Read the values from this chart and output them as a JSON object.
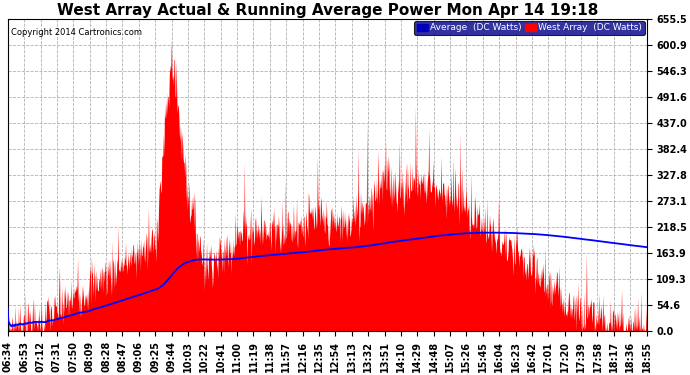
{
  "title": "West Array Actual & Running Average Power Mon Apr 14 19:18",
  "copyright": "Copyright 2014 Cartronics.com",
  "legend_avg": "Average  (DC Watts)",
  "legend_west": "West Array  (DC Watts)",
  "ylabel_values": [
    0.0,
    54.6,
    109.3,
    163.9,
    218.5,
    273.1,
    327.8,
    382.4,
    437.0,
    491.6,
    546.3,
    600.9,
    655.5
  ],
  "ymax": 655.5,
  "ymin": 0.0,
  "bg_color": "#ffffff",
  "grid_color": "#aaaaaa",
  "fill_color": "#ff0000",
  "avg_line_color": "#0000ff",
  "title_fontsize": 11,
  "tick_fontsize": 7.0,
  "xtick_labels": [
    "06:34",
    "06:53",
    "07:12",
    "07:31",
    "07:50",
    "08:09",
    "08:28",
    "08:47",
    "09:06",
    "09:25",
    "09:44",
    "10:03",
    "10:22",
    "10:41",
    "11:00",
    "11:19",
    "11:38",
    "11:57",
    "12:16",
    "12:35",
    "12:54",
    "13:13",
    "13:32",
    "13:51",
    "14:10",
    "14:29",
    "14:48",
    "15:07",
    "15:26",
    "15:45",
    "16:04",
    "16:23",
    "16:42",
    "17:01",
    "17:20",
    "17:39",
    "17:58",
    "18:17",
    "18:36",
    "18:55"
  ]
}
